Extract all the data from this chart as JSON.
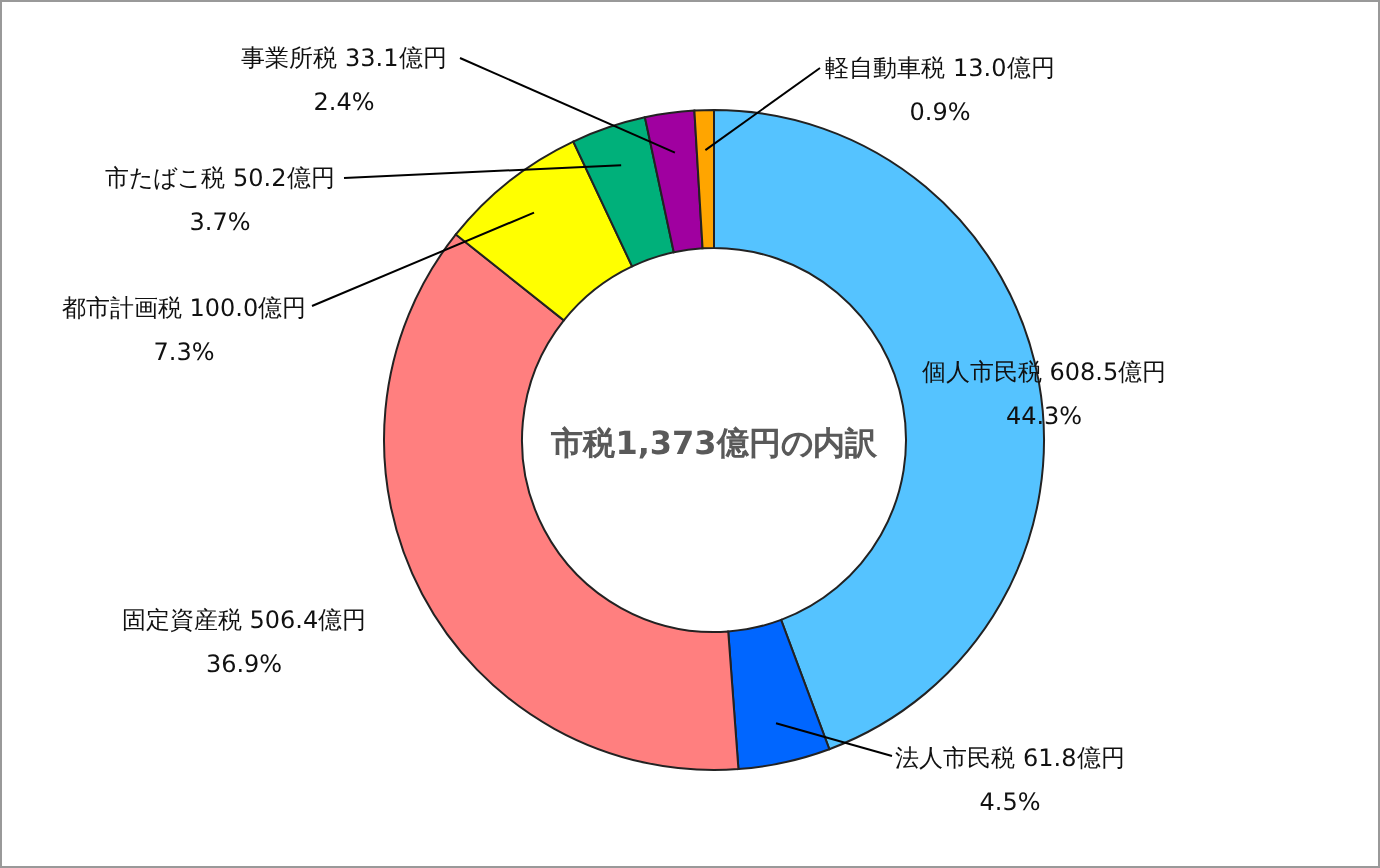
{
  "chart_data": {
    "type": "donut",
    "title": "市税1,373億円の内訳",
    "categories": [
      "個人市民税",
      "法人市民税",
      "固定資産税",
      "都市計画税",
      "市たばこ税",
      "事業所税",
      "軽自動車税"
    ],
    "values": [
      608.5,
      61.8,
      506.4,
      100.0,
      50.2,
      33.1,
      13.0
    ],
    "value_labels": [
      "608.5億円\n44.3%",
      "61.8億円\n4.5%",
      "506.4億円\n36.9%",
      "100.0億円\n7.3%",
      "50.2億円\n3.7%",
      "33.1億円\n2.4%",
      "13.0億円\n0.9%"
    ],
    "colors": [
      "#55c3ff",
      "#0066ff",
      "#ff7f7f",
      "#ffff00",
      "#00b07a",
      "#a000a0",
      "#ffa500"
    ]
  }
}
